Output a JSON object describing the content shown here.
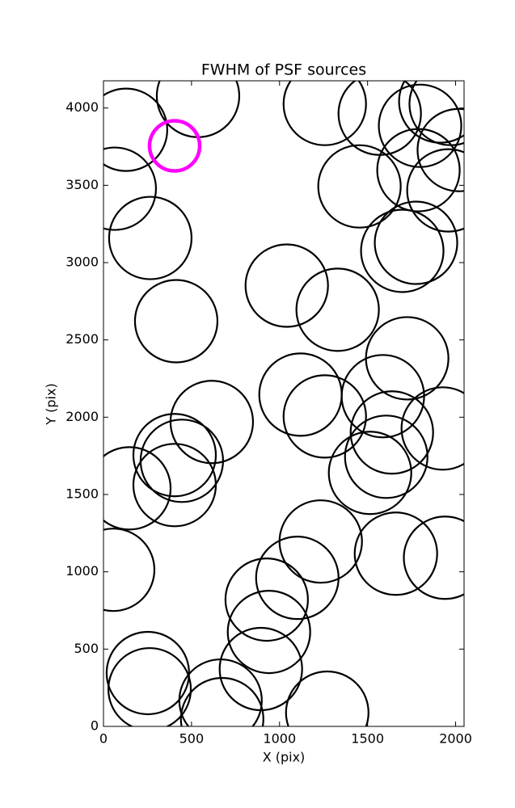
{
  "chart_data": {
    "type": "scatter",
    "title": "FWHM of PSF sources",
    "xlabel": "X (pix)",
    "ylabel": "Y (pix)",
    "xlim": [
      0,
      2048
    ],
    "ylim": [
      0,
      4176
    ],
    "xticks": [
      0,
      500,
      1000,
      1500,
      2000
    ],
    "yticks": [
      0,
      500,
      1000,
      1500,
      2000,
      2500,
      3000,
      3500,
      4000
    ],
    "series": [
      {
        "color": "#000000",
        "x": [
          128,
          537,
          64,
          266,
          413,
          1257,
          1569,
          1454,
          1972,
          1798,
          1913,
          1789,
          2018,
          1959,
          1697,
          1775,
          1041,
          1330,
          1725,
          1119,
          1587,
          1257,
          615,
          404,
          445,
          404,
          147,
          1927,
          1638,
          1606,
          1514,
          55,
          1234,
          1661,
          1940,
          1101,
          927,
          940,
          894,
          252,
          262,
          665,
          674,
          1271
        ],
        "y": [
          3859,
          4078,
          3478,
          3159,
          2621,
          4026,
          3963,
          3493,
          4026,
          3885,
          4042,
          3598,
          3728,
          3467,
          3076,
          3128,
          2851,
          2695,
          2381,
          2146,
          2136,
          2005,
          1969,
          1755,
          1718,
          1561,
          1540,
          1927,
          1901,
          1744,
          1640,
          1013,
          1196,
          1117,
          1091,
          961,
          820,
          611,
          371,
          345,
          240,
          167,
          47,
          89
        ]
      },
      {
        "color": "#ff00ff",
        "x": [
          404
        ],
        "y": [
          3755
        ]
      }
    ]
  }
}
